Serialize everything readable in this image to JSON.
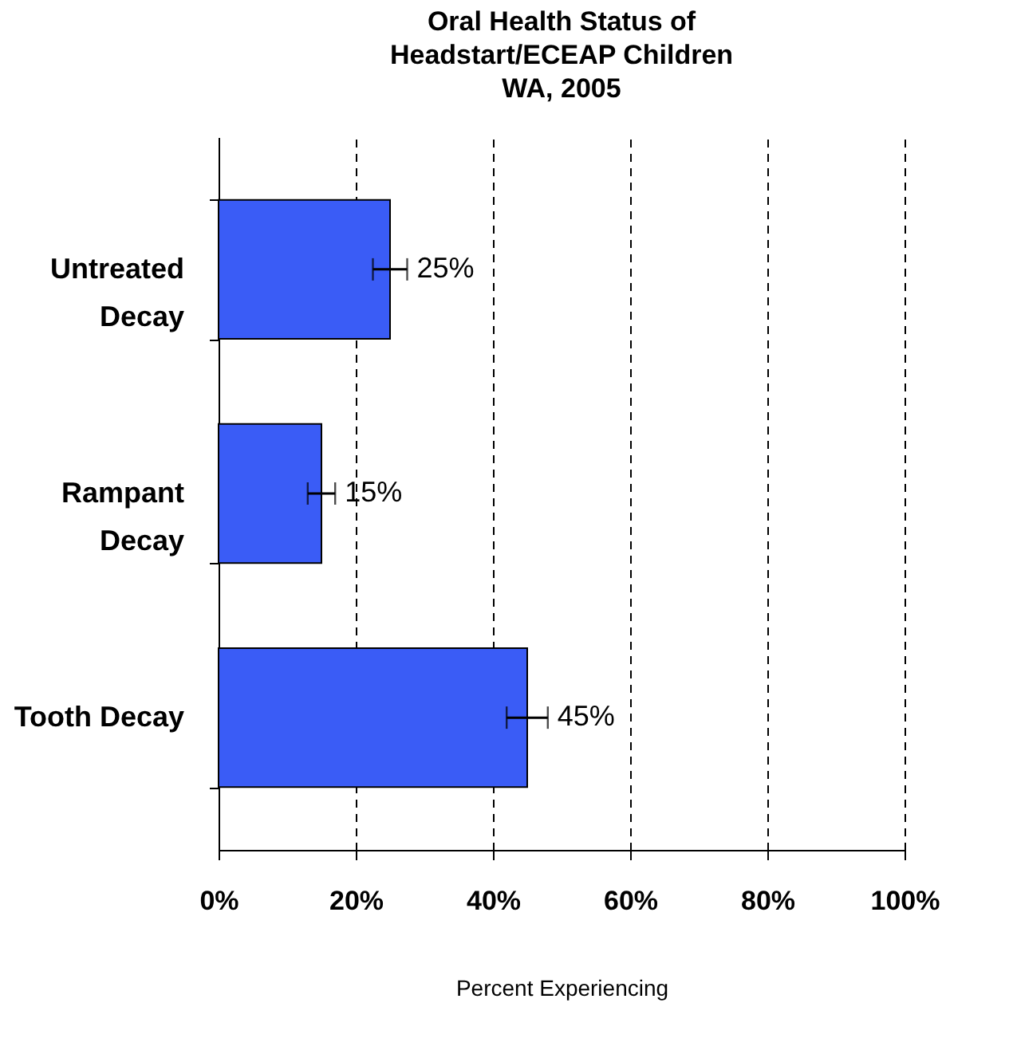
{
  "chart_data": {
    "type": "bar",
    "orientation": "horizontal",
    "title": "Oral Health Status of\nHeadstart/ECEAP Children\nWA, 2005",
    "xlabel": "Percent Experiencing",
    "categories": [
      "Untreated\nDecay",
      "Rampant\nDecay",
      "Tooth Decay"
    ],
    "values": [
      25,
      15,
      45
    ],
    "color": "#3a5cf6",
    "errors": [
      2.5,
      2,
      3
    ],
    "value_labels": [
      "25%",
      "15%",
      "45%"
    ],
    "xlim": [
      0,
      100
    ],
    "xticks": [
      {
        "value": 0,
        "label": "0%"
      },
      {
        "value": 20,
        "label": "20%"
      },
      {
        "value": 40,
        "label": "40%"
      },
      {
        "value": 60,
        "label": "60%"
      },
      {
        "value": 80,
        "label": "80%"
      },
      {
        "value": 100,
        "label": "100%"
      }
    ],
    "grid": "x"
  }
}
